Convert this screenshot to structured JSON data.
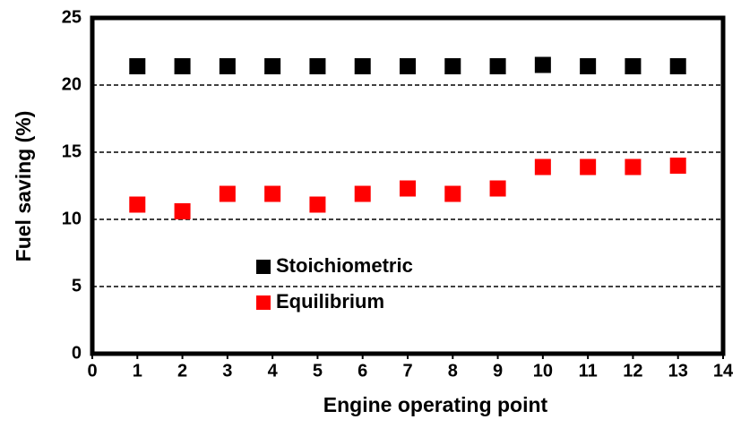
{
  "chart_data": {
    "type": "scatter",
    "x_label": "Engine operating point",
    "y_label": "Fuel saving (%)",
    "xlim": [
      0,
      14
    ],
    "xticks": [
      0,
      1,
      2,
      3,
      4,
      5,
      6,
      7,
      8,
      9,
      10,
      11,
      12,
      13,
      14
    ],
    "ylim": [
      0,
      25
    ],
    "yticks": [
      0,
      5,
      10,
      15,
      20,
      25
    ],
    "grid": true,
    "legend": "center-left",
    "x": [
      1,
      2,
      3,
      4,
      5,
      6,
      7,
      8,
      9,
      10,
      11,
      12,
      13
    ],
    "series": [
      {
        "name": "Stoichiometric",
        "color": "#000000",
        "values": [
          21.4,
          21.4,
          21.4,
          21.4,
          21.4,
          21.4,
          21.4,
          21.4,
          21.4,
          21.5,
          21.4,
          21.4,
          21.4
        ]
      },
      {
        "name": "Equilibrium",
        "color": "#ff0000",
        "values": [
          11.1,
          10.6,
          11.9,
          11.9,
          11.1,
          11.9,
          12.3,
          11.9,
          12.3,
          13.9,
          13.9,
          13.9,
          14.0
        ]
      }
    ]
  }
}
